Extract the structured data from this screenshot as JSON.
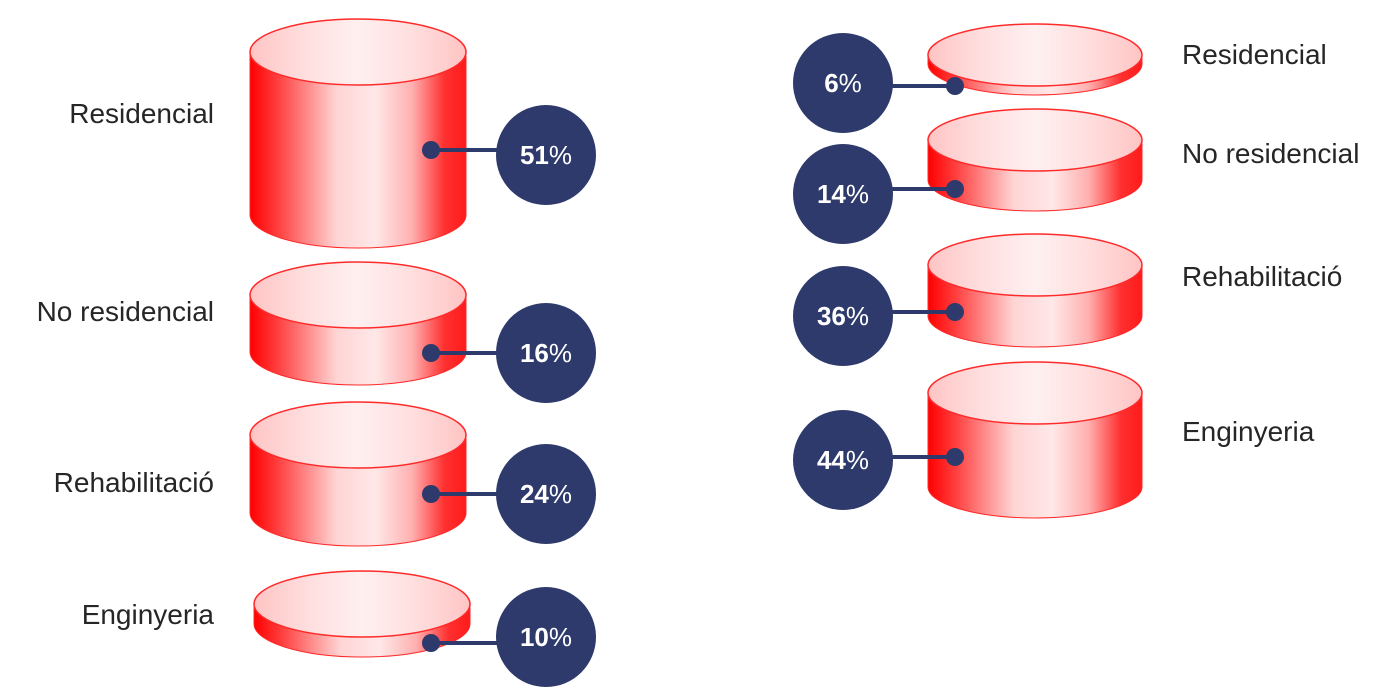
{
  "chart_data": [
    {
      "type": "bar",
      "categories": [
        "Residencial",
        "No residencial",
        "Rehabilitació",
        "Enginyeria"
      ],
      "values": [
        51,
        16,
        24,
        10
      ],
      "unit": "%"
    },
    {
      "type": "bar",
      "categories": [
        "Residencial",
        "No residencial",
        "Rehabilitació",
        "Enginyeria"
      ],
      "values": [
        6,
        14,
        36,
        44
      ],
      "unit": "%"
    }
  ],
  "colors": {
    "cylinder": "#ff0000",
    "badge": "#2e3a6b",
    "label_text": "#262626",
    "badge_text": "#ffffff"
  }
}
